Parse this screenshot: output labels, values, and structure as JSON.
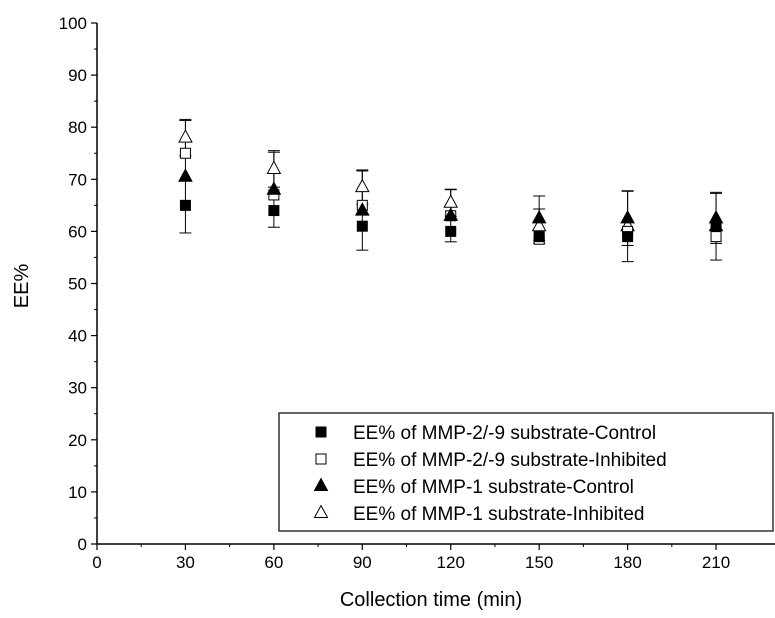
{
  "chart_data": {
    "type": "scatter",
    "title": "",
    "xlabel": "Collection time (min)",
    "ylabel": "EE%",
    "xlim": [
      0,
      230
    ],
    "ylim": [
      0,
      100
    ],
    "x_ticks": [
      0,
      30,
      60,
      90,
      120,
      150,
      180,
      210
    ],
    "y_ticks": [
      0,
      10,
      20,
      30,
      40,
      50,
      60,
      70,
      80,
      90,
      100
    ],
    "grid": false,
    "legend_position": "bottom-right",
    "x": [
      30,
      60,
      90,
      120,
      150,
      180,
      210
    ],
    "series": [
      {
        "name": "EE% of MMP-2/-9 substrate-Control",
        "marker": "filled-square",
        "values": [
          65,
          64,
          61,
          60,
          59,
          59,
          61
        ],
        "error": [
          0.5,
          0.5,
          0.5,
          0.5,
          0.5,
          0.5,
          0.5
        ]
      },
      {
        "name": "EE% of MMP-2/-9 substrate-Inhibited",
        "marker": "open-square",
        "values": [
          75,
          67,
          65,
          63,
          58.5,
          60,
          59
        ],
        "error": [
          0.5,
          0.5,
          0.5,
          0.5,
          0.5,
          0.5,
          0.5
        ]
      },
      {
        "name": "EE% of MMP-1 substrate-Control",
        "marker": "filled-triangle",
        "values": [
          70.5,
          68,
          64,
          63,
          62.5,
          62.5,
          62.5
        ],
        "error": [
          10.8,
          7.2,
          7.6,
          5,
          4.3,
          5.2,
          4.8
        ]
      },
      {
        "name": "EE% of MMP-1 substrate-Inhibited",
        "marker": "open-triangle",
        "values": [
          78,
          72,
          68.5,
          65.5,
          61,
          61,
          61
        ],
        "error": [
          3.5,
          3.5,
          3.3,
          2.6,
          3.3,
          6.8,
          6.5
        ]
      }
    ]
  }
}
